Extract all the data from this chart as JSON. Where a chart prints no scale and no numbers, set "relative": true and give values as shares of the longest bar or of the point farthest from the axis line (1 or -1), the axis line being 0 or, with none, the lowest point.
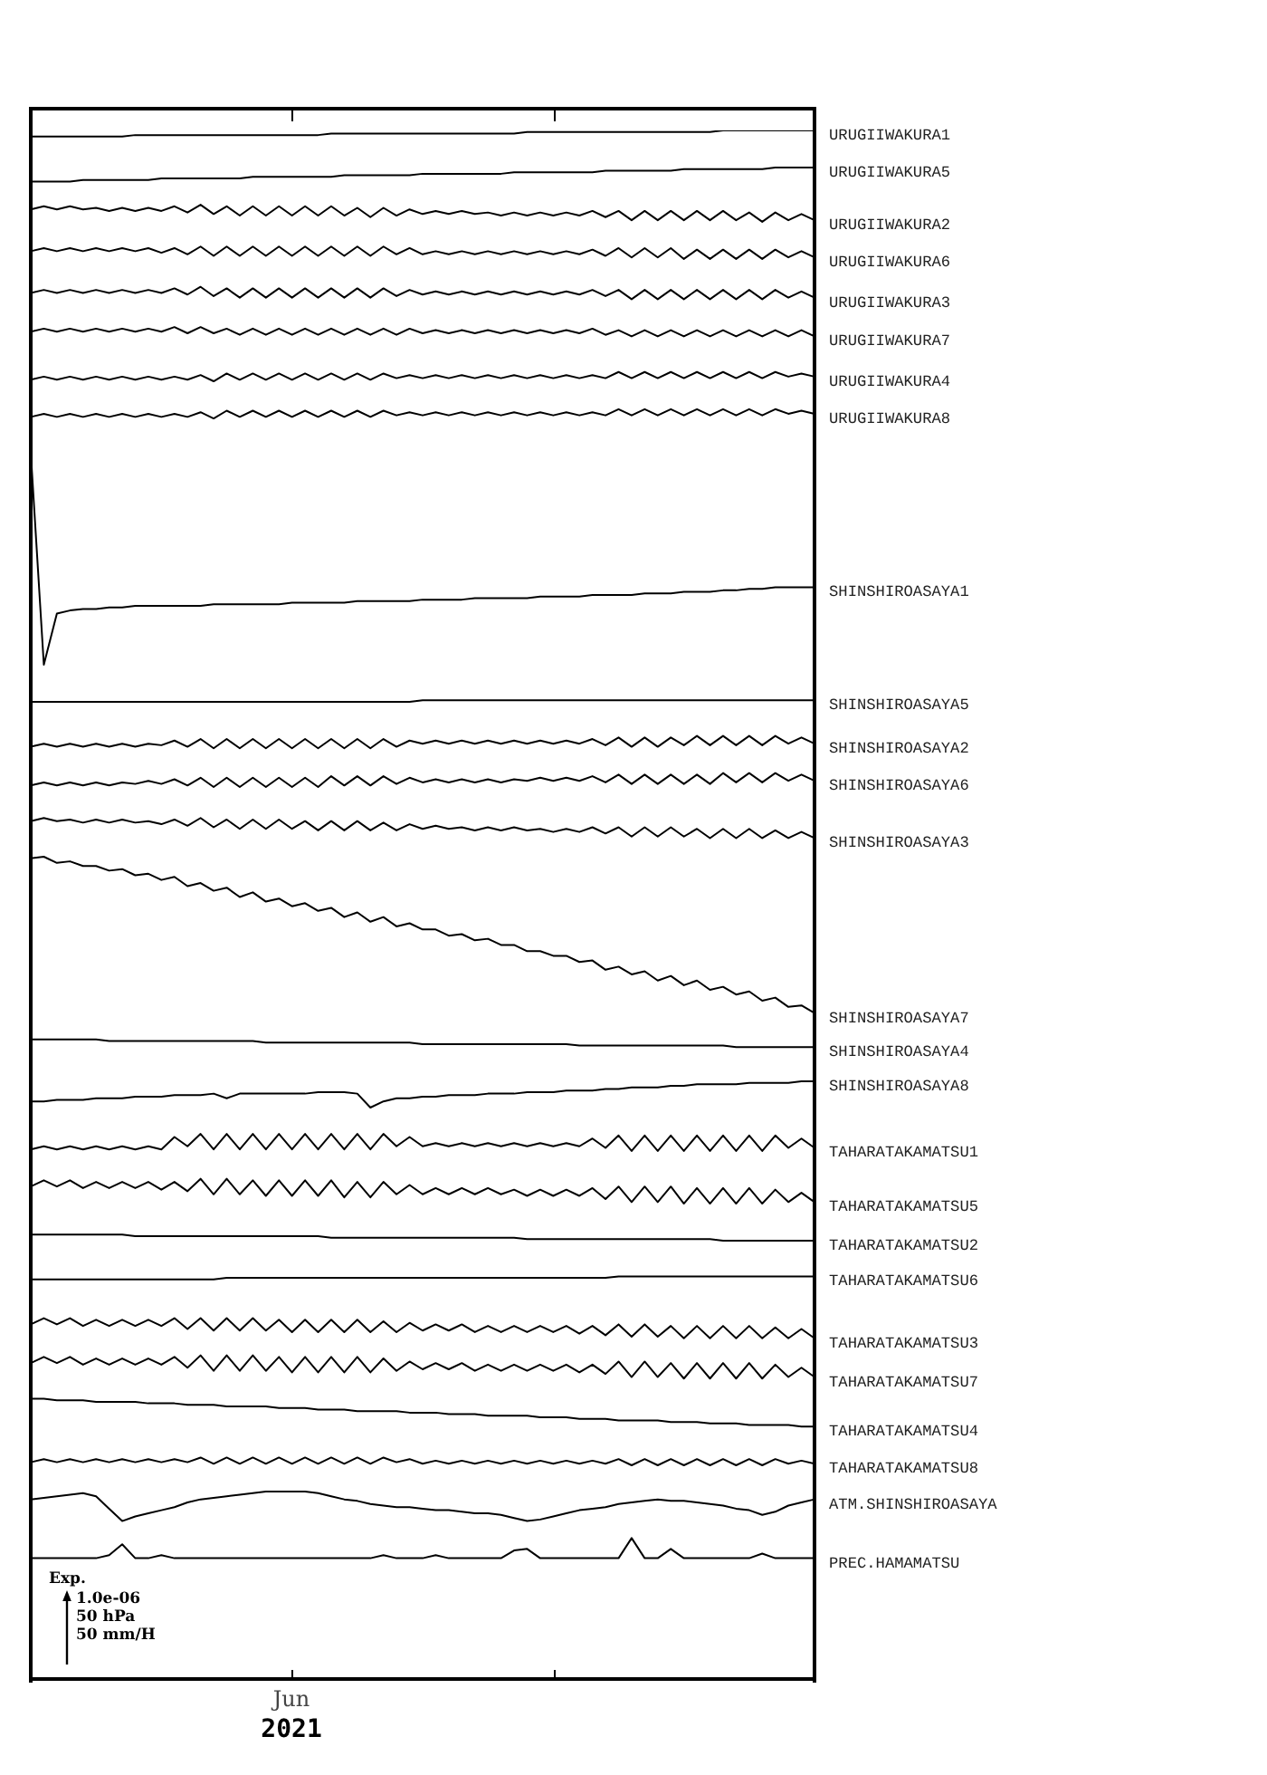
{
  "chart_data": {
    "type": "line",
    "relative": true,
    "marker": "none",
    "annotations": [
      "Exp.",
      "1.0e-06",
      "50 hPa",
      "50 mm/H",
      "Jun\n2021"
    ],
    "categories": [
      null,
      null,
      null,
      null,
      null,
      null,
      null,
      null,
      null,
      null,
      null,
      null,
      null,
      null,
      null,
      null,
      null,
      null,
      null,
      null,
      null,
      null,
      null,
      null,
      null,
      null,
      null,
      null,
      null,
      null,
      null,
      null,
      null,
      null,
      null,
      null,
      null,
      null,
      null,
      null,
      null,
      null,
      null,
      null,
      null,
      null,
      null,
      null,
      null,
      null,
      null,
      null,
      null,
      null,
      null,
      null,
      null,
      null,
      null,
      null,
      null
    ],
    "series": [
      {
        "name": "URUGIIWAKURA1",
        "color": "#000000",
        "values": [
          0.996,
          0.996,
          0.996,
          0.996,
          0.996,
          0.996,
          0.996,
          0.996,
          0.997,
          0.997,
          0.997,
          0.997,
          0.997,
          0.997,
          0.997,
          0.997,
          0.997,
          0.997,
          0.997,
          0.997,
          0.997,
          0.997,
          0.997,
          0.998,
          0.998,
          0.998,
          0.998,
          0.998,
          0.998,
          0.998,
          0.998,
          0.998,
          0.998,
          0.998,
          0.998,
          0.998,
          0.998,
          0.998,
          0.999,
          0.999,
          0.999,
          0.999,
          0.999,
          0.999,
          0.999,
          0.999,
          0.999,
          0.999,
          0.999,
          0.999,
          0.999,
          0.999,
          0.999,
          1.0,
          1.0,
          1.0,
          1.0,
          1.0,
          1.0,
          1.0,
          1.0
        ]
      },
      {
        "name": "URUGIIWAKURA5",
        "color": "#000000",
        "values": [
          0.967,
          0.967,
          0.967,
          0.967,
          0.968,
          0.968,
          0.968,
          0.968,
          0.968,
          0.968,
          0.969,
          0.969,
          0.969,
          0.969,
          0.969,
          0.969,
          0.969,
          0.97,
          0.97,
          0.97,
          0.97,
          0.97,
          0.97,
          0.97,
          0.971,
          0.971,
          0.971,
          0.971,
          0.971,
          0.971,
          0.972,
          0.972,
          0.972,
          0.972,
          0.972,
          0.972,
          0.972,
          0.973,
          0.973,
          0.973,
          0.973,
          0.973,
          0.973,
          0.973,
          0.974,
          0.974,
          0.974,
          0.974,
          0.974,
          0.974,
          0.975,
          0.975,
          0.975,
          0.975,
          0.975,
          0.975,
          0.975,
          0.976,
          0.976,
          0.976,
          0.976
        ]
      },
      {
        "name": "URUGIIWAKURA2",
        "color": "#000000",
        "values": [
          0.949,
          0.951,
          0.949,
          0.951,
          0.949,
          0.95,
          0.948,
          0.95,
          0.948,
          0.95,
          0.948,
          0.951,
          0.947,
          0.952,
          0.946,
          0.951,
          0.945,
          0.951,
          0.945,
          0.951,
          0.945,
          0.951,
          0.945,
          0.951,
          0.945,
          0.95,
          0.944,
          0.95,
          0.945,
          0.949,
          0.946,
          0.948,
          0.946,
          0.948,
          0.946,
          0.947,
          0.945,
          0.947,
          0.945,
          0.947,
          0.945,
          0.947,
          0.945,
          0.948,
          0.944,
          0.948,
          0.942,
          0.948,
          0.942,
          0.948,
          0.942,
          0.948,
          0.942,
          0.948,
          0.942,
          0.947,
          0.941,
          0.947,
          0.942,
          0.946,
          0.942
        ]
      },
      {
        "name": "URUGIIWAKURA6",
        "color": "#000000",
        "values": [
          0.922,
          0.924,
          0.922,
          0.924,
          0.922,
          0.924,
          0.922,
          0.924,
          0.922,
          0.924,
          0.921,
          0.924,
          0.92,
          0.925,
          0.919,
          0.925,
          0.919,
          0.925,
          0.919,
          0.925,
          0.919,
          0.925,
          0.919,
          0.925,
          0.919,
          0.925,
          0.919,
          0.925,
          0.92,
          0.924,
          0.92,
          0.922,
          0.92,
          0.922,
          0.92,
          0.922,
          0.92,
          0.922,
          0.92,
          0.922,
          0.92,
          0.922,
          0.92,
          0.923,
          0.919,
          0.924,
          0.918,
          0.924,
          0.918,
          0.924,
          0.917,
          0.923,
          0.917,
          0.923,
          0.917,
          0.923,
          0.917,
          0.923,
          0.918,
          0.922,
          0.918
        ]
      },
      {
        "name": "URUGIIWAKURA3",
        "color": "#000000",
        "values": [
          0.895,
          0.897,
          0.895,
          0.897,
          0.895,
          0.897,
          0.895,
          0.897,
          0.895,
          0.897,
          0.895,
          0.898,
          0.894,
          0.899,
          0.893,
          0.898,
          0.892,
          0.898,
          0.892,
          0.898,
          0.892,
          0.898,
          0.892,
          0.898,
          0.892,
          0.898,
          0.892,
          0.898,
          0.893,
          0.897,
          0.894,
          0.896,
          0.894,
          0.896,
          0.894,
          0.896,
          0.894,
          0.896,
          0.894,
          0.896,
          0.894,
          0.896,
          0.894,
          0.897,
          0.893,
          0.897,
          0.891,
          0.897,
          0.891,
          0.897,
          0.891,
          0.897,
          0.891,
          0.897,
          0.891,
          0.897,
          0.891,
          0.897,
          0.892,
          0.896,
          0.892
        ]
      },
      {
        "name": "URUGIIWAKURA7",
        "color": "#000000",
        "values": [
          0.87,
          0.872,
          0.87,
          0.872,
          0.87,
          0.872,
          0.87,
          0.872,
          0.87,
          0.872,
          0.87,
          0.873,
          0.869,
          0.873,
          0.869,
          0.872,
          0.868,
          0.872,
          0.868,
          0.872,
          0.868,
          0.872,
          0.868,
          0.872,
          0.868,
          0.872,
          0.868,
          0.872,
          0.868,
          0.872,
          0.869,
          0.871,
          0.869,
          0.871,
          0.869,
          0.871,
          0.869,
          0.871,
          0.869,
          0.871,
          0.869,
          0.871,
          0.869,
          0.872,
          0.868,
          0.871,
          0.867,
          0.871,
          0.867,
          0.871,
          0.867,
          0.871,
          0.867,
          0.871,
          0.867,
          0.871,
          0.867,
          0.871,
          0.867,
          0.871,
          0.867
        ]
      },
      {
        "name": "URUGIIWAKURA4",
        "color": "#000000",
        "values": [
          0.839,
          0.841,
          0.839,
          0.841,
          0.839,
          0.841,
          0.839,
          0.841,
          0.839,
          0.841,
          0.839,
          0.841,
          0.839,
          0.842,
          0.838,
          0.843,
          0.839,
          0.843,
          0.839,
          0.843,
          0.839,
          0.843,
          0.839,
          0.843,
          0.839,
          0.843,
          0.839,
          0.843,
          0.84,
          0.842,
          0.84,
          0.842,
          0.84,
          0.842,
          0.84,
          0.842,
          0.84,
          0.842,
          0.84,
          0.842,
          0.84,
          0.842,
          0.84,
          0.842,
          0.84,
          0.844,
          0.84,
          0.844,
          0.84,
          0.844,
          0.84,
          0.844,
          0.84,
          0.844,
          0.84,
          0.844,
          0.84,
          0.844,
          0.841,
          0.843,
          0.841
        ]
      },
      {
        "name": "URUGIIWAKURA8",
        "color": "#000000",
        "values": [
          0.815,
          0.817,
          0.815,
          0.817,
          0.815,
          0.817,
          0.815,
          0.817,
          0.815,
          0.817,
          0.815,
          0.817,
          0.815,
          0.818,
          0.814,
          0.819,
          0.815,
          0.819,
          0.815,
          0.819,
          0.815,
          0.819,
          0.815,
          0.819,
          0.815,
          0.819,
          0.815,
          0.819,
          0.816,
          0.818,
          0.816,
          0.818,
          0.816,
          0.818,
          0.816,
          0.818,
          0.816,
          0.818,
          0.816,
          0.818,
          0.816,
          0.818,
          0.816,
          0.818,
          0.816,
          0.82,
          0.816,
          0.82,
          0.816,
          0.82,
          0.816,
          0.82,
          0.816,
          0.82,
          0.816,
          0.82,
          0.816,
          0.82,
          0.817,
          0.819,
          0.817
        ]
      },
      {
        "name": "SHINSHIROASAYA1",
        "color": "#000000",
        "values": [
          0.792,
          0.655,
          0.688,
          0.69,
          0.691,
          0.691,
          0.692,
          0.692,
          0.693,
          0.693,
          0.693,
          0.693,
          0.693,
          0.693,
          0.694,
          0.694,
          0.694,
          0.694,
          0.694,
          0.694,
          0.695,
          0.695,
          0.695,
          0.695,
          0.695,
          0.696,
          0.696,
          0.696,
          0.696,
          0.696,
          0.697,
          0.697,
          0.697,
          0.697,
          0.698,
          0.698,
          0.698,
          0.698,
          0.698,
          0.699,
          0.699,
          0.699,
          0.699,
          0.7,
          0.7,
          0.7,
          0.7,
          0.701,
          0.701,
          0.701,
          0.702,
          0.702,
          0.702,
          0.703,
          0.703,
          0.704,
          0.704,
          0.705,
          0.705,
          0.705,
          0.705
        ]
      },
      {
        "name": "SHINSHIROASAYA5",
        "color": "#000000",
        "values": [
          0.631,
          0.631,
          0.631,
          0.631,
          0.631,
          0.631,
          0.631,
          0.631,
          0.631,
          0.631,
          0.631,
          0.631,
          0.631,
          0.631,
          0.631,
          0.631,
          0.631,
          0.631,
          0.631,
          0.631,
          0.631,
          0.631,
          0.631,
          0.631,
          0.631,
          0.631,
          0.631,
          0.631,
          0.631,
          0.631,
          0.632,
          0.632,
          0.632,
          0.632,
          0.632,
          0.632,
          0.632,
          0.632,
          0.632,
          0.632,
          0.632,
          0.632,
          0.632,
          0.632,
          0.632,
          0.632,
          0.632,
          0.632,
          0.632,
          0.632,
          0.632,
          0.632,
          0.632,
          0.632,
          0.632,
          0.632,
          0.632,
          0.632,
          0.632,
          0.632,
          0.632
        ]
      },
      {
        "name": "SHINSHIROASAYA2",
        "color": "#000000",
        "values": [
          0.602,
          0.604,
          0.602,
          0.604,
          0.602,
          0.604,
          0.602,
          0.604,
          0.602,
          0.604,
          0.603,
          0.606,
          0.602,
          0.607,
          0.601,
          0.607,
          0.601,
          0.607,
          0.601,
          0.607,
          0.601,
          0.607,
          0.601,
          0.607,
          0.601,
          0.607,
          0.601,
          0.607,
          0.602,
          0.606,
          0.604,
          0.606,
          0.604,
          0.606,
          0.604,
          0.606,
          0.604,
          0.606,
          0.604,
          0.606,
          0.604,
          0.606,
          0.604,
          0.607,
          0.603,
          0.608,
          0.602,
          0.608,
          0.602,
          0.608,
          0.603,
          0.609,
          0.603,
          0.609,
          0.603,
          0.609,
          0.603,
          0.609,
          0.604,
          0.608,
          0.604
        ]
      },
      {
        "name": "SHINSHIROASAYA6",
        "color": "#000000",
        "values": [
          0.577,
          0.579,
          0.577,
          0.579,
          0.577,
          0.579,
          0.577,
          0.579,
          0.578,
          0.58,
          0.578,
          0.581,
          0.577,
          0.582,
          0.576,
          0.582,
          0.576,
          0.582,
          0.576,
          0.582,
          0.576,
          0.582,
          0.576,
          0.583,
          0.577,
          0.583,
          0.577,
          0.583,
          0.578,
          0.582,
          0.579,
          0.581,
          0.579,
          0.581,
          0.579,
          0.581,
          0.579,
          0.581,
          0.58,
          0.582,
          0.58,
          0.582,
          0.58,
          0.583,
          0.579,
          0.584,
          0.578,
          0.584,
          0.578,
          0.584,
          0.578,
          0.584,
          0.578,
          0.585,
          0.579,
          0.585,
          0.579,
          0.585,
          0.58,
          0.584,
          0.58
        ]
      },
      {
        "name": "SHINSHIROASAYA3",
        "color": "#000000",
        "values": [
          0.554,
          0.556,
          0.554,
          0.555,
          0.553,
          0.555,
          0.553,
          0.555,
          0.553,
          0.554,
          0.552,
          0.555,
          0.551,
          0.556,
          0.55,
          0.555,
          0.549,
          0.555,
          0.549,
          0.555,
          0.549,
          0.554,
          0.548,
          0.554,
          0.548,
          0.554,
          0.548,
          0.553,
          0.548,
          0.552,
          0.549,
          0.551,
          0.549,
          0.55,
          0.548,
          0.55,
          0.548,
          0.55,
          0.548,
          0.549,
          0.547,
          0.549,
          0.547,
          0.55,
          0.546,
          0.55,
          0.544,
          0.55,
          0.544,
          0.55,
          0.544,
          0.549,
          0.543,
          0.549,
          0.543,
          0.549,
          0.543,
          0.548,
          0.543,
          0.547,
          0.543
        ]
      },
      {
        "name": "SHINSHIROASAYA7",
        "color": "#000000",
        "values": [
          0.53,
          0.531,
          0.527,
          0.528,
          0.525,
          0.525,
          0.522,
          0.523,
          0.519,
          0.52,
          0.516,
          0.518,
          0.512,
          0.514,
          0.509,
          0.511,
          0.505,
          0.508,
          0.502,
          0.504,
          0.499,
          0.501,
          0.496,
          0.498,
          0.492,
          0.495,
          0.489,
          0.492,
          0.486,
          0.488,
          0.484,
          0.484,
          0.48,
          0.481,
          0.477,
          0.478,
          0.474,
          0.474,
          0.47,
          0.47,
          0.467,
          0.467,
          0.463,
          0.464,
          0.458,
          0.46,
          0.455,
          0.457,
          0.451,
          0.454,
          0.448,
          0.451,
          0.445,
          0.447,
          0.442,
          0.444,
          0.438,
          0.44,
          0.434,
          0.435,
          0.43
        ]
      },
      {
        "name": "SHINSHIROASAYA4",
        "color": "#000000",
        "values": [
          0.413,
          0.413,
          0.413,
          0.413,
          0.413,
          0.413,
          0.412,
          0.412,
          0.412,
          0.412,
          0.412,
          0.412,
          0.412,
          0.412,
          0.412,
          0.412,
          0.412,
          0.412,
          0.411,
          0.411,
          0.411,
          0.411,
          0.411,
          0.411,
          0.411,
          0.411,
          0.411,
          0.411,
          0.411,
          0.411,
          0.41,
          0.41,
          0.41,
          0.41,
          0.41,
          0.41,
          0.41,
          0.41,
          0.41,
          0.41,
          0.41,
          0.41,
          0.409,
          0.409,
          0.409,
          0.409,
          0.409,
          0.409,
          0.409,
          0.409,
          0.409,
          0.409,
          0.409,
          0.409,
          0.408,
          0.408,
          0.408,
          0.408,
          0.408,
          0.408,
          0.408
        ]
      },
      {
        "name": "SHINSHIROASAYA8",
        "color": "#000000",
        "values": [
          0.373,
          0.373,
          0.374,
          0.374,
          0.374,
          0.375,
          0.375,
          0.375,
          0.376,
          0.376,
          0.376,
          0.377,
          0.377,
          0.377,
          0.378,
          0.375,
          0.378,
          0.378,
          0.378,
          0.378,
          0.378,
          0.378,
          0.379,
          0.379,
          0.379,
          0.378,
          0.369,
          0.373,
          0.375,
          0.375,
          0.376,
          0.376,
          0.377,
          0.377,
          0.377,
          0.378,
          0.378,
          0.378,
          0.379,
          0.379,
          0.379,
          0.38,
          0.38,
          0.38,
          0.381,
          0.381,
          0.382,
          0.382,
          0.382,
          0.383,
          0.383,
          0.384,
          0.384,
          0.384,
          0.384,
          0.385,
          0.385,
          0.385,
          0.385,
          0.386,
          0.386
        ]
      },
      {
        "name": "TAHARATAKAMATSU1",
        "color": "#000000",
        "values": [
          0.342,
          0.344,
          0.342,
          0.344,
          0.342,
          0.344,
          0.342,
          0.344,
          0.342,
          0.344,
          0.342,
          0.35,
          0.344,
          0.352,
          0.342,
          0.352,
          0.342,
          0.352,
          0.342,
          0.352,
          0.342,
          0.352,
          0.342,
          0.352,
          0.342,
          0.352,
          0.342,
          0.352,
          0.344,
          0.35,
          0.344,
          0.346,
          0.344,
          0.346,
          0.344,
          0.346,
          0.344,
          0.346,
          0.344,
          0.346,
          0.344,
          0.346,
          0.344,
          0.349,
          0.343,
          0.351,
          0.341,
          0.351,
          0.341,
          0.351,
          0.341,
          0.351,
          0.341,
          0.351,
          0.341,
          0.351,
          0.341,
          0.351,
          0.343,
          0.349,
          0.343
        ]
      },
      {
        "name": "TAHARATAKAMATSU5",
        "color": "#000000",
        "values": [
          0.318,
          0.322,
          0.318,
          0.322,
          0.317,
          0.321,
          0.317,
          0.321,
          0.317,
          0.321,
          0.316,
          0.321,
          0.315,
          0.323,
          0.313,
          0.323,
          0.313,
          0.322,
          0.312,
          0.322,
          0.312,
          0.322,
          0.312,
          0.322,
          0.311,
          0.321,
          0.311,
          0.321,
          0.313,
          0.319,
          0.313,
          0.317,
          0.313,
          0.317,
          0.313,
          0.317,
          0.313,
          0.316,
          0.312,
          0.316,
          0.312,
          0.316,
          0.312,
          0.317,
          0.31,
          0.318,
          0.308,
          0.318,
          0.308,
          0.318,
          0.307,
          0.317,
          0.307,
          0.317,
          0.307,
          0.317,
          0.307,
          0.316,
          0.308,
          0.314,
          0.308
        ]
      },
      {
        "name": "TAHARATAKAMATSU2",
        "color": "#000000",
        "values": [
          0.287,
          0.287,
          0.287,
          0.287,
          0.287,
          0.287,
          0.287,
          0.287,
          0.286,
          0.286,
          0.286,
          0.286,
          0.286,
          0.286,
          0.286,
          0.286,
          0.286,
          0.286,
          0.286,
          0.286,
          0.286,
          0.286,
          0.286,
          0.285,
          0.285,
          0.285,
          0.285,
          0.285,
          0.285,
          0.285,
          0.285,
          0.285,
          0.285,
          0.285,
          0.285,
          0.285,
          0.285,
          0.285,
          0.284,
          0.284,
          0.284,
          0.284,
          0.284,
          0.284,
          0.284,
          0.284,
          0.284,
          0.284,
          0.284,
          0.284,
          0.284,
          0.284,
          0.284,
          0.283,
          0.283,
          0.283,
          0.283,
          0.283,
          0.283,
          0.283,
          0.283
        ]
      },
      {
        "name": "TAHARATAKAMATSU6",
        "color": "#000000",
        "values": [
          0.258,
          0.258,
          0.258,
          0.258,
          0.258,
          0.258,
          0.258,
          0.258,
          0.258,
          0.258,
          0.258,
          0.258,
          0.258,
          0.258,
          0.258,
          0.259,
          0.259,
          0.259,
          0.259,
          0.259,
          0.259,
          0.259,
          0.259,
          0.259,
          0.259,
          0.259,
          0.259,
          0.259,
          0.259,
          0.259,
          0.259,
          0.259,
          0.259,
          0.259,
          0.259,
          0.259,
          0.259,
          0.259,
          0.259,
          0.259,
          0.259,
          0.259,
          0.259,
          0.259,
          0.259,
          0.26,
          0.26,
          0.26,
          0.26,
          0.26,
          0.26,
          0.26,
          0.26,
          0.26,
          0.26,
          0.26,
          0.26,
          0.26,
          0.26,
          0.26,
          0.26
        ]
      },
      {
        "name": "TAHARATAKAMATSU3",
        "color": "#000000",
        "values": [
          0.229,
          0.233,
          0.229,
          0.233,
          0.228,
          0.232,
          0.228,
          0.232,
          0.228,
          0.232,
          0.228,
          0.233,
          0.226,
          0.233,
          0.225,
          0.233,
          0.225,
          0.233,
          0.225,
          0.232,
          0.224,
          0.232,
          0.224,
          0.232,
          0.224,
          0.232,
          0.224,
          0.231,
          0.224,
          0.23,
          0.225,
          0.229,
          0.225,
          0.229,
          0.224,
          0.228,
          0.224,
          0.228,
          0.224,
          0.228,
          0.224,
          0.228,
          0.223,
          0.228,
          0.222,
          0.229,
          0.221,
          0.229,
          0.221,
          0.228,
          0.22,
          0.228,
          0.22,
          0.228,
          0.22,
          0.228,
          0.22,
          0.227,
          0.22,
          0.226,
          0.22
        ]
      },
      {
        "name": "TAHARATAKAMATSU7",
        "color": "#000000",
        "values": [
          0.204,
          0.208,
          0.204,
          0.208,
          0.203,
          0.207,
          0.203,
          0.207,
          0.203,
          0.207,
          0.203,
          0.208,
          0.201,
          0.209,
          0.199,
          0.209,
          0.199,
          0.209,
          0.199,
          0.208,
          0.198,
          0.208,
          0.198,
          0.208,
          0.198,
          0.208,
          0.198,
          0.207,
          0.199,
          0.205,
          0.2,
          0.204,
          0.2,
          0.204,
          0.199,
          0.203,
          0.199,
          0.203,
          0.199,
          0.203,
          0.199,
          0.203,
          0.198,
          0.203,
          0.197,
          0.205,
          0.195,
          0.205,
          0.195,
          0.204,
          0.194,
          0.204,
          0.194,
          0.204,
          0.194,
          0.204,
          0.194,
          0.203,
          0.195,
          0.201,
          0.195
        ]
      },
      {
        "name": "TAHARATAKAMATSU4",
        "color": "#000000",
        "values": [
          0.181,
          0.181,
          0.18,
          0.18,
          0.18,
          0.179,
          0.179,
          0.179,
          0.179,
          0.178,
          0.178,
          0.178,
          0.177,
          0.177,
          0.177,
          0.176,
          0.176,
          0.176,
          0.176,
          0.175,
          0.175,
          0.175,
          0.174,
          0.174,
          0.174,
          0.173,
          0.173,
          0.173,
          0.173,
          0.172,
          0.172,
          0.172,
          0.171,
          0.171,
          0.171,
          0.17,
          0.17,
          0.17,
          0.17,
          0.169,
          0.169,
          0.169,
          0.168,
          0.168,
          0.168,
          0.167,
          0.167,
          0.167,
          0.167,
          0.166,
          0.166,
          0.166,
          0.165,
          0.165,
          0.165,
          0.164,
          0.164,
          0.164,
          0.164,
          0.163,
          0.163
        ]
      },
      {
        "name": "TAHARATAKAMATSU8",
        "color": "#000000",
        "values": [
          0.14,
          0.142,
          0.14,
          0.142,
          0.14,
          0.142,
          0.14,
          0.142,
          0.14,
          0.142,
          0.14,
          0.142,
          0.14,
          0.143,
          0.139,
          0.143,
          0.139,
          0.143,
          0.139,
          0.143,
          0.139,
          0.143,
          0.139,
          0.143,
          0.139,
          0.143,
          0.139,
          0.143,
          0.14,
          0.142,
          0.139,
          0.141,
          0.139,
          0.141,
          0.139,
          0.141,
          0.139,
          0.141,
          0.139,
          0.141,
          0.139,
          0.141,
          0.139,
          0.141,
          0.139,
          0.142,
          0.138,
          0.142,
          0.138,
          0.142,
          0.138,
          0.142,
          0.138,
          0.142,
          0.138,
          0.142,
          0.138,
          0.142,
          0.139,
          0.141,
          0.139
        ]
      },
      {
        "name": "ATM.SHINSHIROASAYA",
        "color": "#000000",
        "values": [
          0.116,
          0.117,
          0.118,
          0.119,
          0.12,
          0.118,
          0.11,
          0.102,
          0.105,
          0.107,
          0.109,
          0.111,
          0.114,
          0.116,
          0.117,
          0.118,
          0.119,
          0.12,
          0.121,
          0.121,
          0.121,
          0.121,
          0.12,
          0.118,
          0.116,
          0.115,
          0.113,
          0.112,
          0.111,
          0.111,
          0.11,
          0.109,
          0.109,
          0.108,
          0.107,
          0.107,
          0.106,
          0.104,
          0.102,
          0.103,
          0.105,
          0.107,
          0.109,
          0.11,
          0.111,
          0.113,
          0.114,
          0.115,
          0.116,
          0.115,
          0.115,
          0.114,
          0.113,
          0.112,
          0.11,
          0.109,
          0.106,
          0.108,
          0.112,
          0.114,
          0.116
        ]
      },
      {
        "name": "PREC.HAMAMATSU",
        "color": "#000000",
        "values": [
          0.078,
          0.078,
          0.078,
          0.078,
          0.078,
          0.078,
          0.08,
          0.087,
          0.078,
          0.078,
          0.08,
          0.078,
          0.078,
          0.078,
          0.078,
          0.078,
          0.078,
          0.078,
          0.078,
          0.078,
          0.078,
          0.078,
          0.078,
          0.078,
          0.078,
          0.078,
          0.078,
          0.08,
          0.078,
          0.078,
          0.078,
          0.08,
          0.078,
          0.078,
          0.078,
          0.078,
          0.078,
          0.083,
          0.084,
          0.078,
          0.078,
          0.078,
          0.078,
          0.078,
          0.078,
          0.078,
          0.091,
          0.078,
          0.078,
          0.084,
          0.078,
          0.078,
          0.078,
          0.078,
          0.078,
          0.078,
          0.081,
          0.078,
          0.078,
          0.078,
          0.078
        ]
      }
    ]
  }
}
